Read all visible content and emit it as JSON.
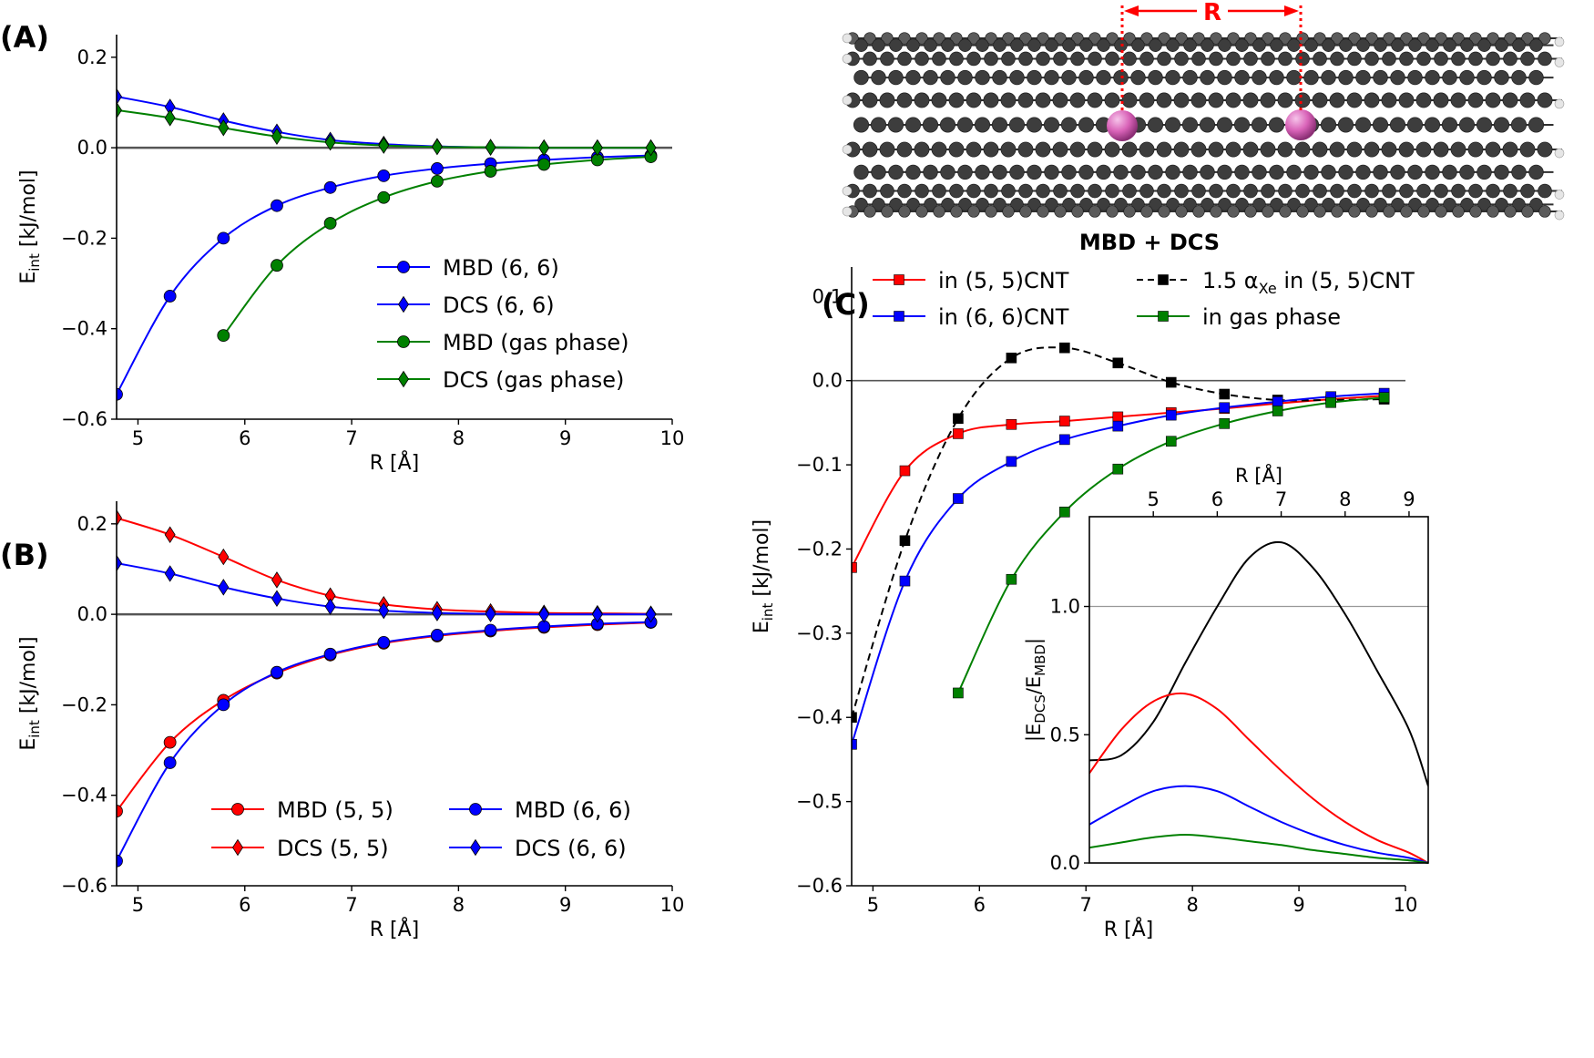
{
  "panel_labels": {
    "a": "(A)",
    "b": "(B)",
    "c": "(C)"
  },
  "nanotube": {
    "distance_label": "R"
  },
  "colors": {
    "red": "#ff0000",
    "blue": "#0000ff",
    "green": "#008000",
    "black": "#000000",
    "xe_atom": "#d963b8",
    "carbon": "#4a4a4a",
    "hydrogen": "#e6e6e6"
  },
  "chart_data": [
    {
      "id": "A",
      "type": "line",
      "title": "",
      "xlabel": "R [Å]",
      "ylabel": "E_int [kJ/mol]",
      "xlim": [
        4.8,
        10
      ],
      "ylim": [
        -0.6,
        0.25
      ],
      "xticks": [
        5,
        6,
        7,
        8,
        9,
        10
      ],
      "yticks": [
        0.2,
        0.0,
        -0.2,
        -0.4,
        -0.6
      ],
      "xtick_labels": [
        "5",
        "6",
        "7",
        "8",
        "9",
        "10"
      ],
      "ytick_labels": [
        "0.2",
        "0.0",
        "−0.2",
        "−0.4",
        "−0.6"
      ],
      "zero_line": true,
      "legend": {
        "position": "lower-right"
      },
      "series": [
        {
          "name": "MBD (6, 6)",
          "color": "#0000ff",
          "marker": "circle",
          "x": [
            4.8,
            5.3,
            5.8,
            6.3,
            6.8,
            7.3,
            7.8,
            8.3,
            8.8,
            9.3,
            9.8
          ],
          "values": [
            -0.545,
            -0.328,
            -0.2,
            -0.128,
            -0.088,
            -0.062,
            -0.046,
            -0.035,
            -0.027,
            -0.021,
            -0.017
          ]
        },
        {
          "name": "DCS (6, 6)",
          "color": "#0000ff",
          "marker": "diamond",
          "x": [
            4.8,
            5.3,
            5.8,
            6.3,
            6.8,
            7.3,
            7.8,
            8.3,
            8.8,
            9.3,
            9.8
          ],
          "values": [
            0.113,
            0.09,
            0.06,
            0.035,
            0.017,
            0.008,
            0.003,
            0.001,
            0.0,
            0.0,
            0.0
          ]
        },
        {
          "name": "MBD (gas phase)",
          "color": "#008000",
          "marker": "circle",
          "x": [
            5.8,
            6.3,
            6.8,
            7.3,
            7.8,
            8.3,
            8.8,
            9.3,
            9.8
          ],
          "values": [
            -0.415,
            -0.26,
            -0.167,
            -0.11,
            -0.074,
            -0.052,
            -0.037,
            -0.027,
            -0.02
          ]
        },
        {
          "name": "DCS (gas phase)",
          "color": "#008000",
          "marker": "diamond",
          "x": [
            4.8,
            5.3,
            5.8,
            6.3,
            6.8,
            7.3,
            7.8,
            8.3,
            8.8,
            9.3,
            9.8
          ],
          "values": [
            0.083,
            0.066,
            0.044,
            0.025,
            0.012,
            0.005,
            0.002,
            0.001,
            0.0,
            0.0,
            0.0
          ]
        }
      ]
    },
    {
      "id": "B",
      "type": "line",
      "title": "",
      "xlabel": "R [Å]",
      "ylabel": "E_int [kJ/mol]",
      "xlim": [
        4.8,
        10
      ],
      "ylim": [
        -0.6,
        0.25
      ],
      "xticks": [
        5,
        6,
        7,
        8,
        9,
        10
      ],
      "yticks": [
        0.2,
        0.0,
        -0.2,
        -0.4,
        -0.6
      ],
      "xtick_labels": [
        "5",
        "6",
        "7",
        "8",
        "9",
        "10"
      ],
      "ytick_labels": [
        "0.2",
        "0.0",
        "−0.2",
        "−0.4",
        "−0.6"
      ],
      "zero_line": true,
      "legend": {
        "position": "lower-right",
        "columns": 2
      },
      "series": [
        {
          "name": "MBD (5, 5)",
          "color": "#ff0000",
          "marker": "circle",
          "x": [
            4.8,
            5.3,
            5.8,
            6.3,
            6.8,
            7.3,
            7.8,
            8.3,
            8.8,
            9.3,
            9.8
          ],
          "values": [
            -0.435,
            -0.283,
            -0.19,
            -0.13,
            -0.09,
            -0.064,
            -0.048,
            -0.037,
            -0.029,
            -0.023,
            -0.018
          ]
        },
        {
          "name": "DCS (5, 5)",
          "color": "#ff0000",
          "marker": "diamond",
          "x": [
            4.8,
            5.3,
            5.8,
            6.3,
            6.8,
            7.3,
            7.8,
            8.3,
            8.8,
            9.3,
            9.8
          ],
          "values": [
            0.213,
            0.176,
            0.127,
            0.076,
            0.041,
            0.022,
            0.011,
            0.006,
            0.003,
            0.002,
            0.001
          ]
        },
        {
          "name": "MBD (6, 6)",
          "color": "#0000ff",
          "marker": "circle",
          "x": [
            4.8,
            5.3,
            5.8,
            6.3,
            6.8,
            7.3,
            7.8,
            8.3,
            8.8,
            9.3,
            9.8
          ],
          "values": [
            -0.545,
            -0.328,
            -0.2,
            -0.128,
            -0.088,
            -0.062,
            -0.046,
            -0.035,
            -0.027,
            -0.021,
            -0.017
          ]
        },
        {
          "name": "DCS (6, 6)",
          "color": "#0000ff",
          "marker": "diamond",
          "x": [
            4.8,
            5.3,
            5.8,
            6.3,
            6.8,
            7.3,
            7.8,
            8.3,
            8.8,
            9.3,
            9.8
          ],
          "values": [
            0.113,
            0.09,
            0.06,
            0.035,
            0.017,
            0.008,
            0.003,
            0.001,
            0.0,
            0.0,
            0.0
          ]
        }
      ]
    },
    {
      "id": "C",
      "type": "line",
      "title": "MBD + DCS",
      "xlabel": "R [Å]",
      "ylabel": "E_int [kJ/mol]",
      "xlim": [
        4.8,
        10
      ],
      "ylim": [
        -0.6,
        0.135
      ],
      "xticks": [
        5,
        6,
        7,
        8,
        9,
        10
      ],
      "yticks": [
        0.1,
        0.0,
        -0.1,
        -0.2,
        -0.3,
        -0.4,
        -0.5,
        -0.6
      ],
      "xtick_labels": [
        "5",
        "6",
        "7",
        "8",
        "9",
        "10"
      ],
      "ytick_labels": [
        "0.1",
        "0.0",
        "−0.1",
        "−0.2",
        "−0.3",
        "−0.4",
        "−0.5",
        "−0.6"
      ],
      "zero_line": true,
      "legend": {
        "position": "top",
        "columns": 2
      },
      "series": [
        {
          "name": "in (5, 5)CNT",
          "color": "#ff0000",
          "marker": "square",
          "dashed": false,
          "x": [
            4.8,
            5.3,
            5.8,
            6.3,
            6.8,
            7.3,
            7.8,
            8.3,
            8.8,
            9.3,
            9.8
          ],
          "values": [
            -0.222,
            -0.107,
            -0.063,
            -0.052,
            -0.048,
            -0.043,
            -0.038,
            -0.033,
            -0.027,
            -0.022,
            -0.018
          ]
        },
        {
          "name": "1.5 αXe in (5, 5)CNT",
          "name_parts": {
            "prefix": "1.5 α",
            "sub": "Xe",
            "suffix": " in (5, 5)CNT"
          },
          "color": "#000000",
          "marker": "square",
          "dashed": true,
          "x": [
            4.8,
            5.3,
            5.8,
            6.3,
            6.8,
            7.3,
            7.8,
            8.3,
            8.8,
            9.3,
            9.8
          ],
          "values": [
            -0.4,
            -0.19,
            -0.045,
            0.027,
            0.039,
            0.021,
            -0.002,
            -0.016,
            -0.023,
            -0.023,
            -0.022
          ]
        },
        {
          "name": "in (6, 6)CNT",
          "color": "#0000ff",
          "marker": "square",
          "dashed": false,
          "x": [
            4.8,
            5.3,
            5.8,
            6.3,
            6.8,
            7.3,
            7.8,
            8.3,
            8.8,
            9.3,
            9.8
          ],
          "values": [
            -0.432,
            -0.238,
            -0.14,
            -0.096,
            -0.07,
            -0.054,
            -0.041,
            -0.032,
            -0.025,
            -0.019,
            -0.015
          ]
        },
        {
          "name": "in gas phase",
          "color": "#008000",
          "marker": "square",
          "dashed": false,
          "x": [
            5.8,
            6.3,
            6.8,
            7.3,
            7.8,
            8.3,
            8.8,
            9.3,
            9.8
          ],
          "values": [
            -0.371,
            -0.236,
            -0.156,
            -0.105,
            -0.072,
            -0.051,
            -0.036,
            -0.026,
            -0.02
          ]
        }
      ]
    },
    {
      "id": "C-inset",
      "type": "line",
      "title": "",
      "xlabel": "R [Å]",
      "xlabel_position": "top",
      "ylabel": "|E_DCS/E_MBD|",
      "xlim": [
        4.0,
        9.3
      ],
      "ylim": [
        0.0,
        1.35
      ],
      "xticks": [
        5,
        6,
        7,
        8,
        9
      ],
      "yticks": [
        0.0,
        0.5,
        1.0
      ],
      "xtick_labels": [
        "5",
        "6",
        "7",
        "8",
        "9"
      ],
      "ytick_labels": [
        "0.0",
        "0.5",
        "1.0"
      ],
      "reference_line": 1.0,
      "series": [
        {
          "name": "1.5 αXe in (5, 5)CNT",
          "color": "#000000",
          "x": [
            4.0,
            4.5,
            5.0,
            5.5,
            6.0,
            6.5,
            7.0,
            7.5,
            8.0,
            8.5,
            9.0,
            9.3
          ],
          "values": [
            0.4,
            0.42,
            0.55,
            0.78,
            1.0,
            1.19,
            1.25,
            1.15,
            0.97,
            0.75,
            0.52,
            0.3
          ]
        },
        {
          "name": "in (5, 5)CNT",
          "color": "#ff0000",
          "x": [
            4.0,
            4.5,
            5.0,
            5.5,
            6.0,
            6.5,
            7.0,
            7.5,
            8.0,
            8.5,
            9.0,
            9.3
          ],
          "values": [
            0.35,
            0.52,
            0.63,
            0.66,
            0.6,
            0.48,
            0.36,
            0.25,
            0.16,
            0.09,
            0.04,
            0.0
          ]
        },
        {
          "name": "in (6, 6)CNT",
          "color": "#0000ff",
          "x": [
            4.0,
            4.5,
            5.0,
            5.5,
            6.0,
            6.5,
            7.0,
            7.5,
            8.0,
            8.5,
            9.0,
            9.3
          ],
          "values": [
            0.15,
            0.22,
            0.28,
            0.3,
            0.28,
            0.22,
            0.16,
            0.11,
            0.07,
            0.04,
            0.02,
            0.0
          ]
        },
        {
          "name": "in gas phase",
          "color": "#008000",
          "x": [
            4.0,
            4.5,
            5.0,
            5.5,
            6.0,
            6.5,
            7.0,
            7.5,
            8.0,
            8.5,
            9.0,
            9.3
          ],
          "values": [
            0.06,
            0.08,
            0.1,
            0.11,
            0.1,
            0.085,
            0.07,
            0.05,
            0.035,
            0.02,
            0.01,
            0.0
          ]
        }
      ]
    }
  ]
}
